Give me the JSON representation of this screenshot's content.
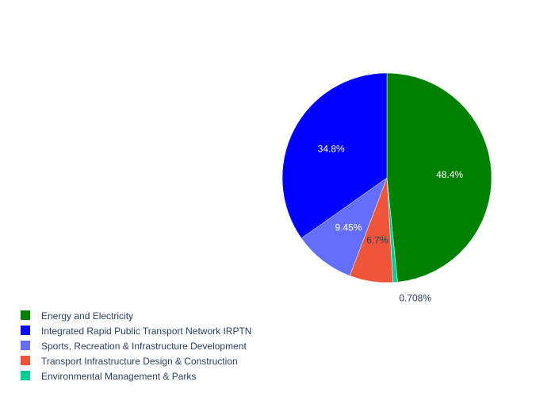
{
  "chart_data": {
    "type": "pie",
    "title": "",
    "categories": [
      "Energy and Electricity",
      "Environmental Management & Parks",
      "Transport Infrastructure Design & Construction",
      "Sports, Recreation & Infrastructure Development",
      "Integrated Rapid Public Transport Network IRPTN"
    ],
    "values": [
      48.4,
      0.708,
      6.7,
      9.45,
      34.8
    ],
    "labels": [
      "48.4%",
      "0.708%",
      "6.7%",
      "9.45%",
      "34.8%"
    ],
    "colors": [
      "#008000",
      "#00cc96",
      "#ef553b",
      "#636efa",
      "#0000ff"
    ],
    "label_colors": [
      "#ffffff",
      "#2a3f5f",
      "#2a3f5f",
      "#ffffff",
      "#ffffff"
    ],
    "legend": {
      "placement": "bottom-left",
      "entries": [
        {
          "label": "Energy and Electricity",
          "color": "#008000"
        },
        {
          "label": "Integrated Rapid Public Transport Network IRPTN",
          "color": "#0000ff"
        },
        {
          "label": "Sports, Recreation & Infrastructure Development",
          "color": "#636efa"
        },
        {
          "label": "Transport Infrastructure Design & Construction",
          "color": "#ef553b"
        },
        {
          "label": "Environmental Management & Parks",
          "color": "#00cc96"
        }
      ]
    }
  }
}
